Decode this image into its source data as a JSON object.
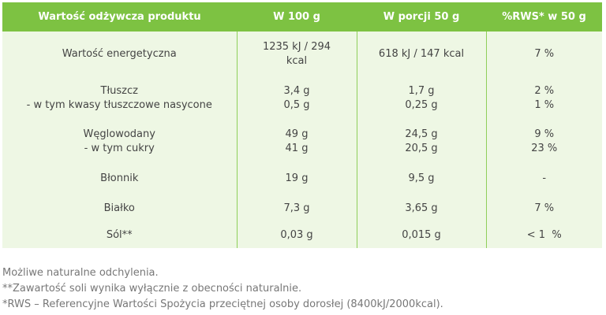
{
  "table": {
    "header": [
      "Wartość odżywcza produktu",
      "W 100 g",
      "W porcji 50 g",
      "%RWS* w 50 g"
    ],
    "rows": [
      [
        [
          "Wartość energetyczna"
        ],
        [
          "1235 kJ / 294 kcal"
        ],
        [
          "618 kJ / 147 kcal"
        ],
        [
          "7 %"
        ]
      ],
      [
        [
          "Tłuszcz",
          "- w tym kwasy tłuszczowe nasycone"
        ],
        [
          "3,4 g",
          "0,5 g"
        ],
        [
          "1,7 g",
          "0,25 g"
        ],
        [
          "2 %",
          "1 %"
        ]
      ],
      [
        [
          "Węglowodany",
          "- w tym cukry"
        ],
        [
          "49 g",
          "41 g"
        ],
        [
          "24,5 g",
          "20,5 g"
        ],
        [
          "9 %",
          "23 %"
        ]
      ],
      [
        [
          "Błonnik"
        ],
        [
          "19 g"
        ],
        [
          "9,5 g"
        ],
        [
          "-"
        ]
      ],
      [
        [
          "Białko"
        ],
        [
          "7,3 g"
        ],
        [
          "3,65 g"
        ],
        [
          "7 %"
        ]
      ],
      [
        [
          "Sól**"
        ],
        [
          "0,03 g"
        ],
        [
          "0,015 g"
        ],
        [
          "< 1  %"
        ]
      ]
    ]
  },
  "notes": [
    "Możliwe naturalne odchylenia.",
    "**Zawartość soli wynika wyłącznie z obecności naturalnie.",
    "*RWS – Referencyjne Wartości Spożycia przeciętnej osoby dorosłej (8400kJ/2000kcal)."
  ]
}
